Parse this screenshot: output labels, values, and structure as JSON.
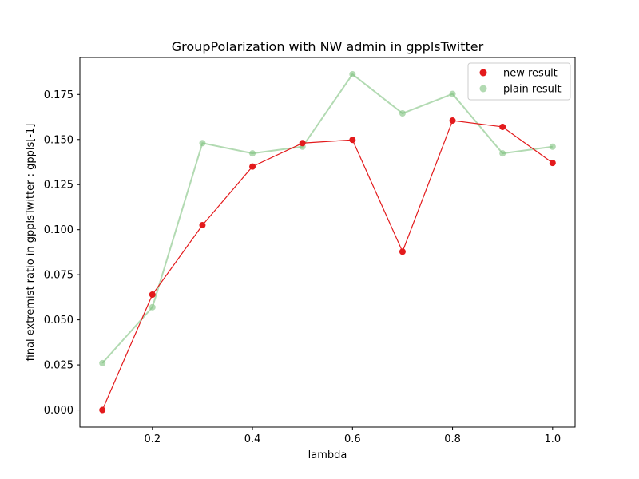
{
  "chart_data": {
    "type": "line",
    "title": "GroupPolarization with NW admin in gpplsTwitter",
    "xlabel": "lambda",
    "ylabel": "final extremist ratio in  gpplsTwitter : gppls[-1]",
    "xlim": [
      0.055,
      1.045
    ],
    "ylim": [
      -0.0095,
      0.1955
    ],
    "xticks": [
      0.2,
      0.4,
      0.6,
      0.8,
      1.0
    ],
    "xtick_labels": [
      "0.2",
      "0.4",
      "0.6",
      "0.8",
      "1.0"
    ],
    "yticks": [
      0.0,
      0.025,
      0.05,
      0.075,
      0.1,
      0.125,
      0.15,
      0.175
    ],
    "ytick_labels": [
      "0.000",
      "0.025",
      "0.050",
      "0.075",
      "0.100",
      "0.125",
      "0.150",
      "0.175"
    ],
    "grid": false,
    "legend_position": "top-right",
    "x": [
      0.1,
      0.2,
      0.3,
      0.4,
      0.5,
      0.6,
      0.7,
      0.8,
      0.9,
      1.0
    ],
    "series": [
      {
        "name": "new result",
        "color": "#e31a1c",
        "values": [
          0.0,
          0.064,
          0.1025,
          0.135,
          0.148,
          0.1498,
          0.0878,
          0.1605,
          0.157,
          0.137
        ]
      },
      {
        "name": "plain result",
        "color": "#7fc17f",
        "values": [
          0.026,
          0.057,
          0.148,
          0.1423,
          0.146,
          0.1862,
          0.1645,
          0.1753,
          0.1423,
          0.146
        ]
      }
    ]
  }
}
